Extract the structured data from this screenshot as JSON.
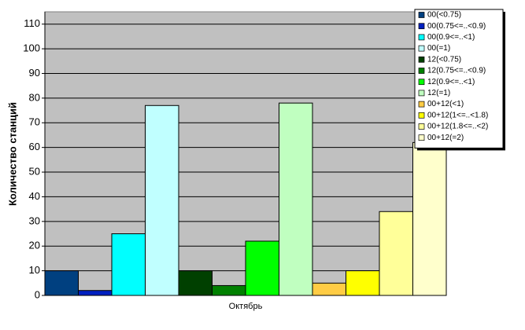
{
  "chart_data": {
    "type": "bar",
    "y_label": "Количество станций",
    "categories": [
      "Октябрь"
    ],
    "series": [
      {
        "name": "00(<0.75)",
        "color": "#004080",
        "values": [
          10
        ]
      },
      {
        "name": "00(0.75<=..<0.9)",
        "color": "#0020c0",
        "values": [
          2
        ]
      },
      {
        "name": "00(0.9<=..<1)",
        "color": "#00ffff",
        "values": [
          25
        ]
      },
      {
        "name": "00(=1)",
        "color": "#c0ffff",
        "values": [
          77
        ]
      },
      {
        "name": "12(<0.75)",
        "color": "#004000",
        "values": [
          10
        ]
      },
      {
        "name": "12(0.75<=..<0.9)",
        "color": "#008000",
        "values": [
          4
        ]
      },
      {
        "name": "12(0.9<=..<1)",
        "color": "#00ff00",
        "values": [
          22
        ]
      },
      {
        "name": "12(=1)",
        "color": "#c0ffc0",
        "values": [
          78
        ]
      },
      {
        "name": "00+12(<1)",
        "color": "#ffcc44",
        "values": [
          5
        ]
      },
      {
        "name": "00+12(1<=..<1.8)",
        "color": "#ffff00",
        "values": [
          10
        ]
      },
      {
        "name": "00+12(1.8<=..<2)",
        "color": "#ffff99",
        "values": [
          34
        ]
      },
      {
        "name": "00+12(=2)",
        "color": "#ffffcc",
        "values": [
          62
        ]
      }
    ],
    "ylim": [
      0,
      115
    ],
    "yticks": [
      0,
      10,
      20,
      30,
      40,
      50,
      60,
      70,
      80,
      90,
      100,
      110
    ],
    "grid": true,
    "legend": "top-right"
  }
}
